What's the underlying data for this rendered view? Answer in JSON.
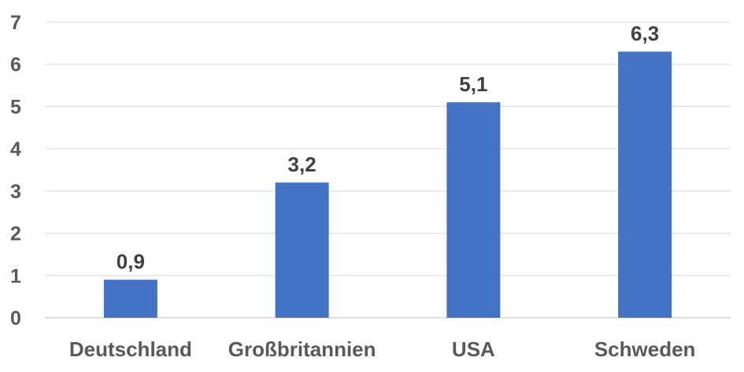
{
  "chart_data": {
    "type": "bar",
    "title": "",
    "xlabel": "",
    "ylabel": "",
    "categories": [
      "Deutschland",
      "Großbritannien",
      "USA",
      "Schweden"
    ],
    "values": [
      0.9,
      3.2,
      5.1,
      6.3
    ],
    "value_labels": [
      "0,9",
      "3,2",
      "5,1",
      "6,3"
    ],
    "ylim": [
      0,
      7
    ],
    "yticks": [
      "0",
      "1",
      "2",
      "3",
      "4",
      "5",
      "6",
      "7"
    ],
    "grid": true,
    "legend": "none",
    "bar_color": "#4472C4"
  }
}
